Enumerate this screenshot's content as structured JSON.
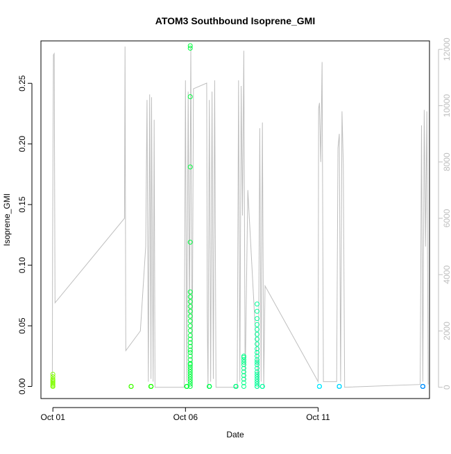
{
  "chart_data": {
    "type": "scatter",
    "title": "ATOM3 Southbound Isoprene_GMI",
    "xlabel": "Date",
    "ylabel": "Isoprene_GMI",
    "x_ticks": [
      {
        "label": "Oct 01",
        "day": 1
      },
      {
        "label": "Oct 06",
        "day": 6
      },
      {
        "label": "Oct 11",
        "day": 11
      }
    ],
    "xlim_days": [
      0.55,
      15.2
    ],
    "ylim": [
      -0.01,
      0.285
    ],
    "y_ticks": [
      0.0,
      0.05,
      0.1,
      0.15,
      0.2,
      0.25
    ],
    "y_tick_labels": [
      "0.00",
      "0.05",
      "0.10",
      "0.15",
      "0.20",
      "0.25"
    ],
    "y2lim": [
      -400,
      12300
    ],
    "y2_ticks": [
      0,
      2000,
      4000,
      6000,
      8000,
      10000,
      12000
    ],
    "y2_tick_labels": [
      "0",
      "2000",
      "4000",
      "6000",
      "8000",
      "10000",
      "12000"
    ],
    "grid": false,
    "colors": {
      "background_line": "#bebebe",
      "axis": "#000000",
      "axis_right": "#bebebe"
    },
    "point_clusters": [
      {
        "day": 1.0,
        "color": "#80ff00",
        "values": [
          0.0,
          0.0,
          0.001,
          0.002,
          0.003,
          0.004,
          0.005,
          0.006,
          0.008,
          0.01
        ]
      },
      {
        "day": 3.95,
        "color": "#40ff00",
        "values": [
          0.0,
          0.0,
          0.0,
          0.0
        ]
      },
      {
        "day": 4.7,
        "color": "#20ff00",
        "values": [
          0.0,
          0.0,
          0.0,
          0.0,
          0.0,
          0.0,
          0.0,
          0.0,
          0.0,
          0.0
        ]
      },
      {
        "day": 6.05,
        "color": "#00ff30",
        "values": [
          0.0,
          0.0,
          0.0,
          0.0,
          0.0,
          0.0,
          0.0
        ]
      },
      {
        "day": 6.18,
        "color": "#00ff40",
        "values": [
          0.0,
          0.002,
          0.004,
          0.006,
          0.008,
          0.01,
          0.012,
          0.014,
          0.016,
          0.018,
          0.019,
          0.022,
          0.025,
          0.028,
          0.03,
          0.033,
          0.036,
          0.039,
          0.042,
          0.046,
          0.05,
          0.054,
          0.058,
          0.062,
          0.066,
          0.07,
          0.074,
          0.078,
          0.119,
          0.181,
          0.239,
          0.279,
          0.281
        ]
      },
      {
        "day": 6.9,
        "color": "#00ff50",
        "values": [
          0.0,
          0.0,
          0.0,
          0.0,
          0.0,
          0.0,
          0.0,
          0.0,
          0.0,
          0.0
        ]
      },
      {
        "day": 7.9,
        "color": "#00ff80",
        "values": [
          0.0,
          0.0,
          0.0,
          0.0,
          0.0,
          0.0,
          0.0,
          0.0,
          0.0
        ]
      },
      {
        "day": 8.2,
        "color": "#00ff88",
        "values": [
          0.0,
          0.003,
          0.006,
          0.009,
          0.012,
          0.015,
          0.018,
          0.02,
          0.022,
          0.024,
          0.025
        ]
      },
      {
        "day": 8.7,
        "color": "#00ff99",
        "values": [
          0.0,
          0.0,
          0.002,
          0.004,
          0.006,
          0.008,
          0.01,
          0.012,
          0.015,
          0.018,
          0.02,
          0.022,
          0.025,
          0.028,
          0.031,
          0.035,
          0.039,
          0.043,
          0.047,
          0.051,
          0.056,
          0.062,
          0.068
        ]
      },
      {
        "day": 8.9,
        "color": "#00ffa0",
        "values": [
          0.0,
          0.0,
          0.0,
          0.0
        ]
      },
      {
        "day": 11.05,
        "color": "#00e8ff",
        "values": [
          0.0,
          0.0,
          0.0,
          0.0,
          0.0,
          0.0
        ]
      },
      {
        "day": 11.8,
        "color": "#00d8ff",
        "values": [
          0.0,
          0.0,
          0.0,
          0.0,
          0.0,
          0.0,
          0.0,
          0.0,
          0.0,
          0.0
        ]
      },
      {
        "day": 14.95,
        "color": "#0090ff",
        "values": [
          0.0,
          0.0,
          0.0,
          0.0,
          0.0,
          0.0,
          0.0,
          0.0,
          0.0,
          0.0
        ]
      }
    ],
    "background_series": {
      "name": "",
      "axis": "right",
      "points": [
        [
          0.98,
          100
        ],
        [
          0.99,
          5000
        ],
        [
          1.02,
          11800
        ],
        [
          1.05,
          11850
        ],
        [
          1.08,
          3000
        ],
        [
          3.7,
          6000
        ],
        [
          3.72,
          12100
        ],
        [
          3.75,
          1300
        ],
        [
          4.3,
          2000
        ],
        [
          4.5,
          5000
        ],
        [
          4.55,
          10200
        ],
        [
          4.6,
          200
        ],
        [
          4.65,
          10400
        ],
        [
          4.7,
          300
        ],
        [
          4.72,
          10300
        ],
        [
          4.78,
          200
        ],
        [
          4.82,
          9500
        ],
        [
          4.85,
          0
        ],
        [
          5.95,
          0
        ],
        [
          6.0,
          10900
        ],
        [
          6.05,
          200
        ],
        [
          6.1,
          10500
        ],
        [
          6.15,
          2500
        ],
        [
          6.2,
          12100
        ],
        [
          6.25,
          0
        ],
        [
          6.3,
          10600
        ],
        [
          6.8,
          10800
        ],
        [
          6.82,
          2600
        ],
        [
          6.85,
          0
        ],
        [
          6.9,
          10200
        ],
        [
          6.95,
          200
        ],
        [
          7.0,
          10500
        ],
        [
          7.05,
          300
        ],
        [
          7.1,
          10900
        ],
        [
          7.15,
          0
        ],
        [
          7.95,
          0
        ],
        [
          8.0,
          10900
        ],
        [
          8.05,
          200
        ],
        [
          8.1,
          10700
        ],
        [
          8.15,
          6100
        ],
        [
          8.2,
          11950
        ],
        [
          8.25,
          200
        ],
        [
          8.3,
          3500
        ],
        [
          8.35,
          7000
        ],
        [
          8.75,
          0
        ],
        [
          8.8,
          9200
        ],
        [
          8.85,
          200
        ],
        [
          8.9,
          9400
        ],
        [
          8.95,
          0
        ],
        [
          9.0,
          3600
        ],
        [
          11.0,
          200
        ],
        [
          11.02,
          9900
        ],
        [
          11.05,
          10100
        ],
        [
          11.1,
          8000
        ],
        [
          11.15,
          11550
        ],
        [
          11.2,
          200
        ],
        [
          11.7,
          200
        ],
        [
          11.75,
          8500
        ],
        [
          11.8,
          9000
        ],
        [
          11.85,
          200
        ],
        [
          11.9,
          9800
        ],
        [
          11.95,
          7900
        ],
        [
          12.0,
          0
        ],
        [
          14.85,
          100
        ],
        [
          14.9,
          9300
        ],
        [
          14.95,
          200
        ],
        [
          15.0,
          9850
        ],
        [
          15.05,
          5000
        ],
        [
          15.1,
          9800
        ],
        [
          15.15,
          100
        ]
      ]
    }
  }
}
